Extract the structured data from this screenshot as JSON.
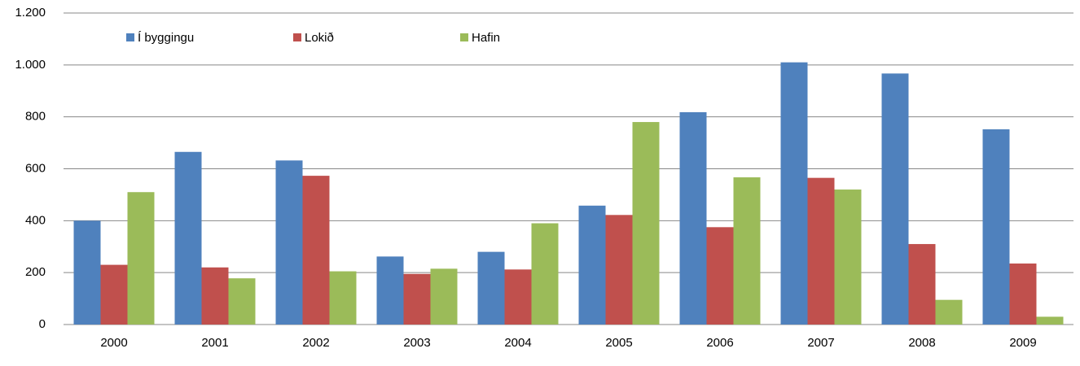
{
  "chart_data": {
    "type": "bar",
    "categories": [
      "2000",
      "2001",
      "2002",
      "2003",
      "2004",
      "2005",
      "2006",
      "2007",
      "2008",
      "2009"
    ],
    "series": [
      {
        "name": "Í byggingu",
        "color": "#4f81bd",
        "values": [
          400,
          665,
          632,
          262,
          280,
          458,
          818,
          1010,
          967,
          752
        ]
      },
      {
        "name": "Lokið",
        "color": "#c0504d",
        "values": [
          230,
          220,
          573,
          195,
          212,
          422,
          375,
          565,
          310,
          235
        ]
      },
      {
        "name": "Hafin",
        "color": "#9bbb59",
        "values": [
          510,
          178,
          205,
          215,
          390,
          780,
          567,
          520,
          95,
          30
        ]
      }
    ],
    "ylim": [
      0,
      1200
    ],
    "yticks": [
      0,
      200,
      400,
      600,
      800,
      {
        "value": 1000,
        "label": "1.000"
      },
      {
        "value": 1200,
        "label": "1.200"
      }
    ],
    "grid": true,
    "legend": "top-left"
  }
}
